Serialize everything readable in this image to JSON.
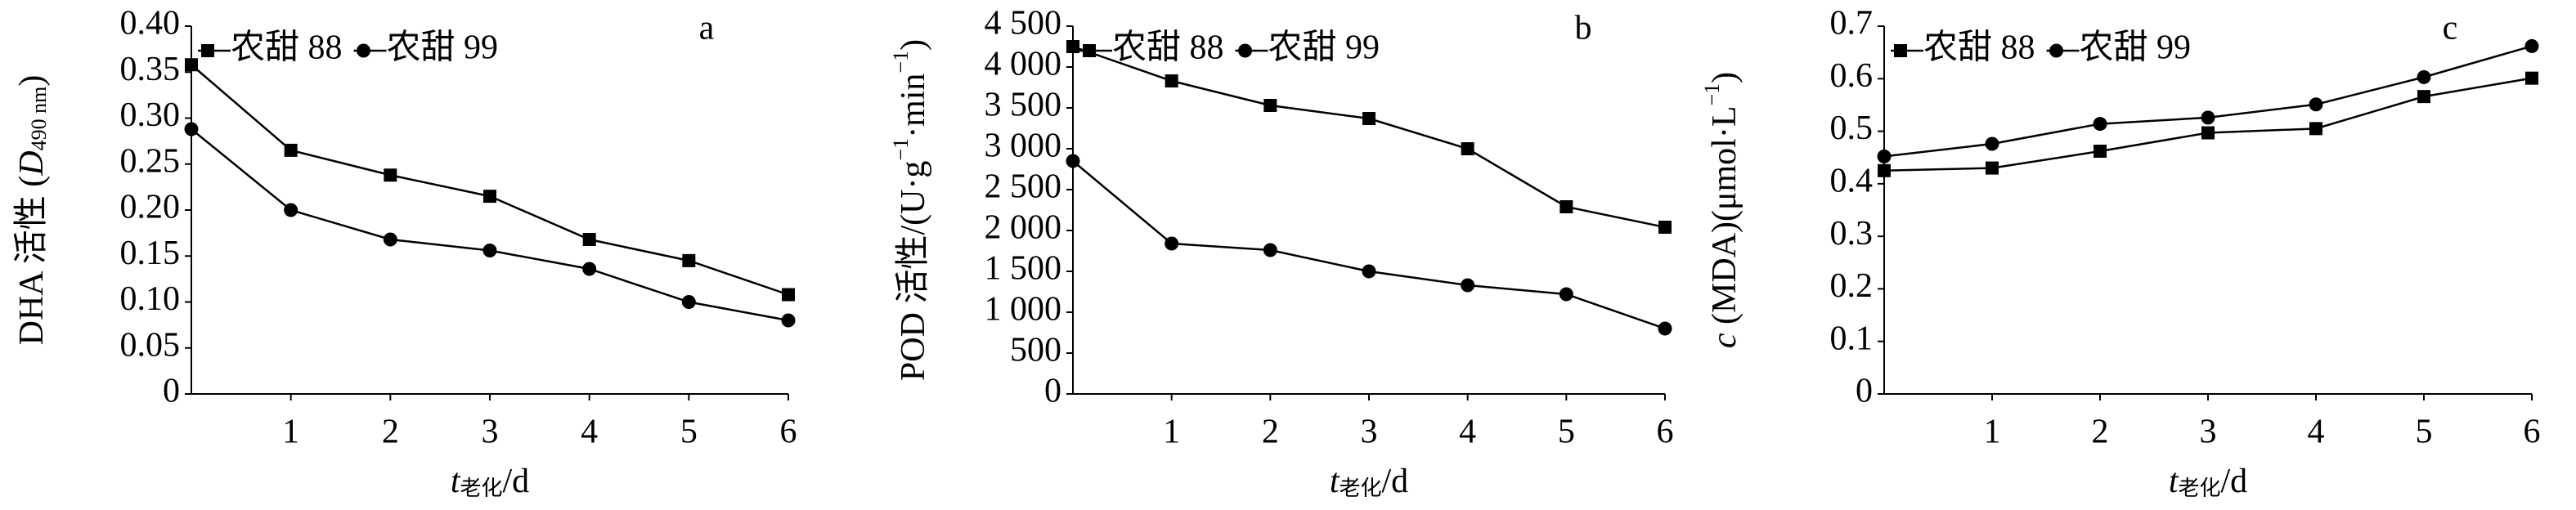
{
  "chart_data": [
    {
      "type": "line",
      "panel_label": "a",
      "y_label": [
        {
          "text": "DHA 活性 (",
          "style": "normal"
        },
        {
          "text": "D",
          "style": "italic"
        },
        {
          "text": "490 nm",
          "style": "sub"
        },
        {
          "text": ")",
          "style": "normal"
        }
      ],
      "x_label": [
        {
          "text": "t",
          "style": "italic"
        },
        {
          "text": "老化",
          "style": "sub"
        },
        {
          "text": "/d",
          "style": "normal"
        }
      ],
      "x": [
        0,
        1,
        2,
        3,
        4,
        5,
        6
      ],
      "xlim": [
        0,
        6
      ],
      "xticks": [
        1,
        2,
        3,
        4,
        5,
        6
      ],
      "ylim": [
        0,
        0.4
      ],
      "yticks": [
        0,
        0.05,
        {
          "value": 0.1,
          "label": "0.10"
        },
        0.15,
        {
          "value": 0.2,
          "label": "0.20"
        },
        0.25,
        {
          "value": 0.3,
          "label": "0.30"
        },
        0.35,
        {
          "value": 0.4,
          "label": "0.40"
        }
      ],
      "legend": "upper left",
      "series": [
        {
          "name": "农甜 88",
          "color": "#000000",
          "marker": "square",
          "values": [
            0.358,
            0.265,
            0.238,
            0.215,
            0.168,
            0.145,
            0.108
          ]
        },
        {
          "name": "农甜 99",
          "color": "#000000",
          "marker": "circle",
          "values": [
            0.288,
            0.2,
            0.168,
            0.156,
            0.136,
            0.1,
            0.08
          ]
        }
      ]
    },
    {
      "type": "line",
      "panel_label": "b",
      "y_label": [
        {
          "text": "POD 活性/(U·g",
          "style": "normal"
        },
        {
          "text": "−1",
          "style": "sup"
        },
        {
          "text": "·min",
          "style": "normal"
        },
        {
          "text": "−1",
          "style": "sup"
        },
        {
          "text": ")",
          "style": "normal"
        }
      ],
      "x_label": [
        {
          "text": "t",
          "style": "italic"
        },
        {
          "text": "老化",
          "style": "sub"
        },
        {
          "text": "/d",
          "style": "normal"
        }
      ],
      "x": [
        0,
        1,
        2,
        3,
        4,
        5,
        6
      ],
      "xlim": [
        0,
        6
      ],
      "xticks": [
        1,
        2,
        3,
        4,
        5,
        6
      ],
      "ylim": [
        0,
        4500
      ],
      "yticks": [
        0,
        500,
        {
          "value": 1000,
          "label": "1 000"
        },
        {
          "value": 1500,
          "label": "1 500"
        },
        {
          "value": 2000,
          "label": "2 000"
        },
        {
          "value": 2500,
          "label": "2 500"
        },
        {
          "value": 3000,
          "label": "3 000"
        },
        {
          "value": 3500,
          "label": "3 500"
        },
        {
          "value": 4000,
          "label": "4 000"
        },
        {
          "value": 4500,
          "label": "4 500"
        }
      ],
      "legend": "upper left",
      "series": [
        {
          "name": "农甜 88",
          "color": "#000000",
          "marker": "square",
          "values": [
            4250,
            3830,
            3530,
            3370,
            3000,
            2290,
            2040
          ]
        },
        {
          "name": "农甜 99",
          "color": "#000000",
          "marker": "circle",
          "values": [
            2850,
            1840,
            1760,
            1500,
            1330,
            1220,
            800
          ]
        }
      ]
    },
    {
      "type": "line",
      "panel_label": "c",
      "y_label": [
        {
          "text": "c",
          "style": "italic"
        },
        {
          "text": " (MDA)(μmol·L",
          "style": "normal"
        },
        {
          "text": "−1",
          "style": "sup"
        },
        {
          "text": ")",
          "style": "normal"
        }
      ],
      "x_label": [
        {
          "text": "t",
          "style": "italic"
        },
        {
          "text": "老化",
          "style": "sub"
        },
        {
          "text": "/d",
          "style": "normal"
        }
      ],
      "x": [
        0,
        1,
        2,
        3,
        4,
        5,
        6
      ],
      "xlim": [
        0,
        6
      ],
      "xticks": [
        1,
        2,
        3,
        4,
        5,
        6
      ],
      "ylim": [
        0,
        0.7
      ],
      "yticks": [
        0,
        0.1,
        0.2,
        0.3,
        0.4,
        0.5,
        0.6,
        0.7
      ],
      "legend": "upper left",
      "series": [
        {
          "name": "农甜 88",
          "color": "#000000",
          "marker": "square",
          "values": [
            0.425,
            0.43,
            0.462,
            0.497,
            0.505,
            0.566,
            0.601
          ]
        },
        {
          "name": "农甜 99",
          "color": "#000000",
          "marker": "circle",
          "values": [
            0.452,
            0.476,
            0.514,
            0.526,
            0.551,
            0.603,
            0.662
          ]
        }
      ]
    }
  ]
}
